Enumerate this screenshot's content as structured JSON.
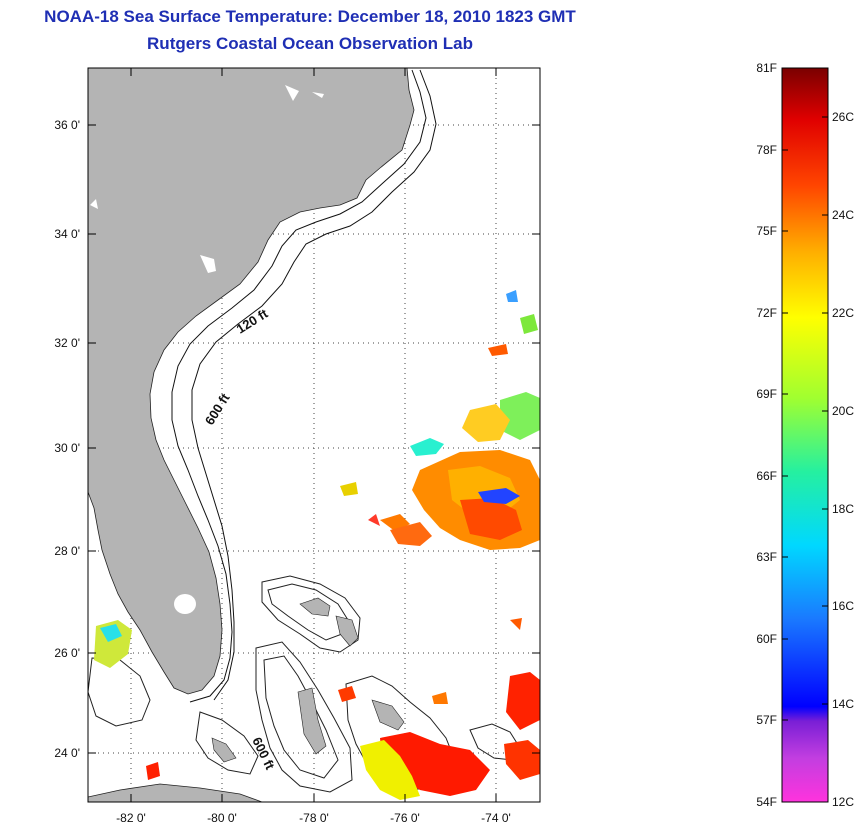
{
  "header": {
    "title": "NOAA-18 Sea Surface Temperature:  December 18, 2010 1823 GMT",
    "subtitle": "Rutgers Coastal Ocean Observation Lab"
  },
  "map": {
    "lat_labels": [
      "36 0'",
      "34 0'",
      "32 0'",
      "30 0'",
      "28 0'",
      "26 0'",
      "24 0'"
    ],
    "lon_labels": [
      "-82 0'",
      "-80 0'",
      "-78 0'",
      "-76 0'",
      "-74 0'"
    ],
    "contour_labels": [
      "120 ft",
      "600 ft",
      "600 ft"
    ],
    "land_color": "#b4b4b4"
  },
  "colorbar": {
    "f_labels": [
      "81F",
      "78F",
      "75F",
      "72F",
      "69F",
      "66F",
      "63F",
      "60F",
      "57F",
      "54F"
    ],
    "c_labels": [
      "26C",
      "24C",
      "22C",
      "20C",
      "18C",
      "16C",
      "14C",
      "12C"
    ]
  }
}
